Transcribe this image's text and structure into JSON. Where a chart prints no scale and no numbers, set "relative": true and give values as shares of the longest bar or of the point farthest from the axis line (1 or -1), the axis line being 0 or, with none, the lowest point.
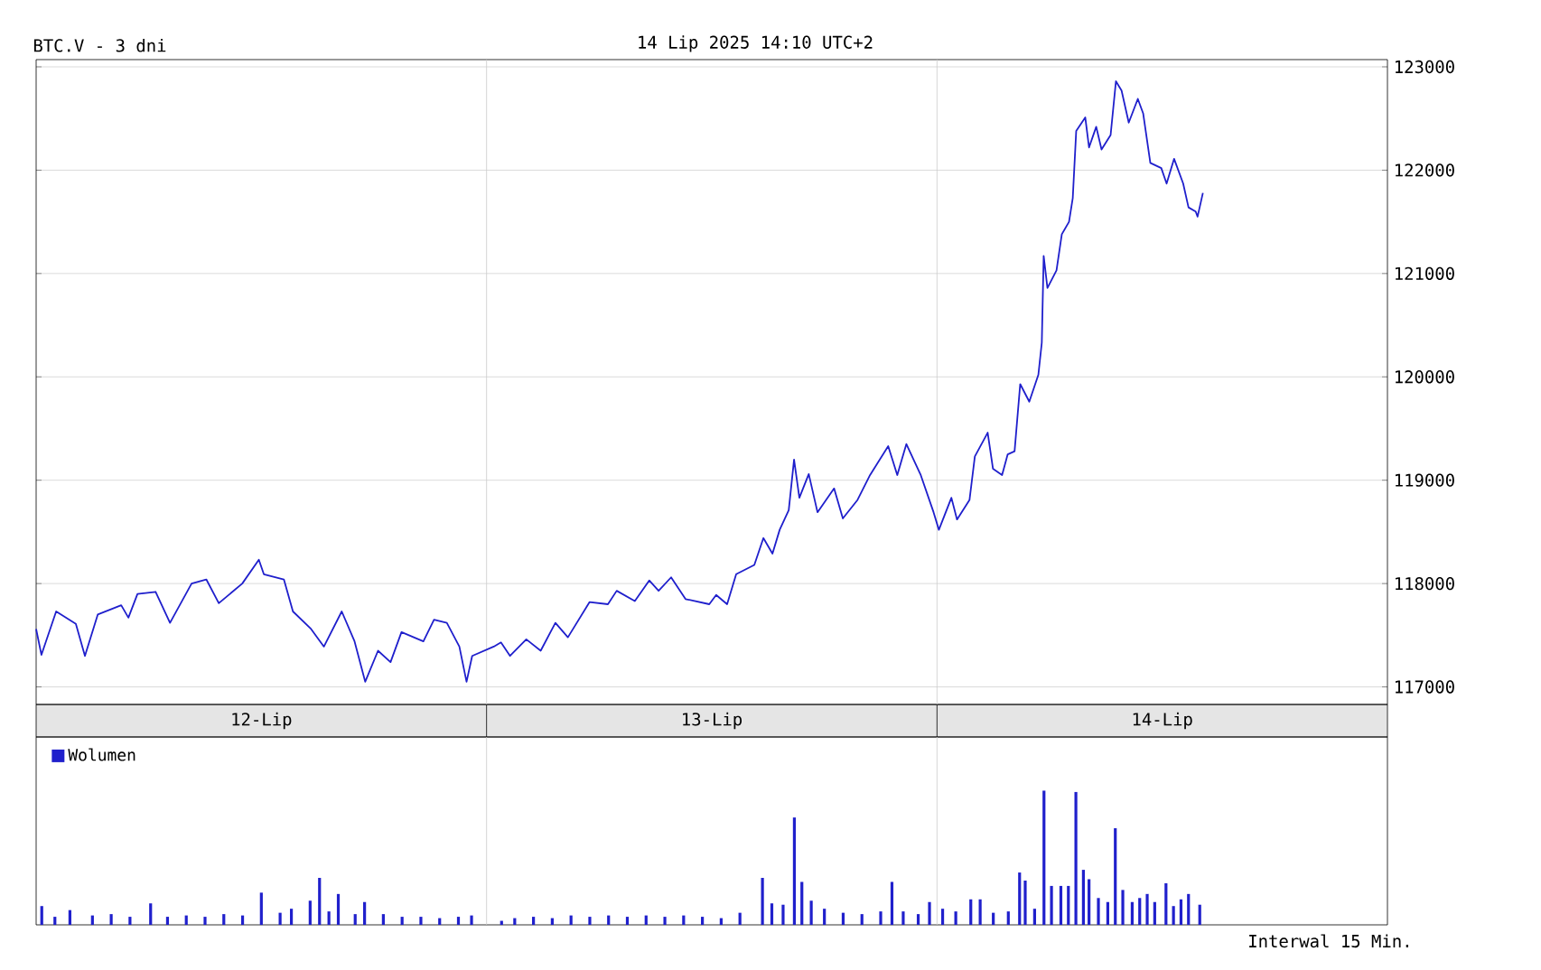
{
  "chart_data": [
    {
      "type": "line",
      "title": "BTC.V - 3 dni",
      "subtitle": "14 Lip 2025 14:10 UTC+2",
      "xlim": [
        "2025-07-12T00:00",
        "2025-07-15T00:00"
      ],
      "ylim": [
        116830,
        123070
      ],
      "tick_labels": "y",
      "yticks": [
        117000,
        118000,
        119000,
        120000,
        121000,
        122000,
        123000
      ],
      "grid": "y",
      "marker": "none",
      "line_style": "solid",
      "ref_lines": [
        {
          "axis": "x",
          "value": "2025-07-13T00:00",
          "color": "#cccccc"
        },
        {
          "axis": "x",
          "value": "2025-07-14T00:00",
          "color": "#cccccc"
        }
      ],
      "series": [
        {
          "color": "#1f1fcc",
          "x": [
            "2025-07-12T00:00",
            "2025-07-12T00:17",
            "2025-07-12T01:04",
            "2025-07-12T02:07",
            "2025-07-12T02:36",
            "2025-07-12T03:17",
            "2025-07-12T04:32",
            "2025-07-12T04:55",
            "2025-07-12T05:24",
            "2025-07-12T06:22",
            "2025-07-12T07:08",
            "2025-07-12T08:17",
            "2025-07-12T09:04",
            "2025-07-12T09:44",
            "2025-07-12T10:59",
            "2025-07-12T11:52",
            "2025-07-12T12:08",
            "2025-07-12T13:12",
            "2025-07-12T13:41",
            "2025-07-12T14:39",
            "2025-07-12T15:20",
            "2025-07-12T16:17",
            "2025-07-12T16:58",
            "2025-07-12T17:32",
            "2025-07-12T18:13",
            "2025-07-12T18:53",
            "2025-07-12T19:28",
            "2025-07-12T20:38",
            "2025-07-12T21:12",
            "2025-07-12T21:53",
            "2025-07-12T22:33",
            "2025-07-12T22:56",
            "2025-07-12T23:14",
            "2025-07-13T00:23",
            "2025-07-13T00:46",
            "2025-07-13T01:15",
            "2025-07-13T02:07",
            "2025-07-13T02:53",
            "2025-07-13T03:40",
            "2025-07-13T04:20",
            "2025-07-13T05:29",
            "2025-07-13T06:28",
            "2025-07-13T06:56",
            "2025-07-13T07:54",
            "2025-07-13T08:40",
            "2025-07-13T09:10",
            "2025-07-13T09:50",
            "2025-07-13T10:36",
            "2025-07-13T11:52",
            "2025-07-13T12:14",
            "2025-07-13T12:49",
            "2025-07-13T13:18",
            "2025-07-13T14:16",
            "2025-07-13T14:45",
            "2025-07-13T15:14",
            "2025-07-13T15:37",
            "2025-07-13T16:06",
            "2025-07-13T16:23",
            "2025-07-13T16:40",
            "2025-07-13T17:10",
            "2025-07-13T17:38",
            "2025-07-13T18:31",
            "2025-07-13T18:59",
            "2025-07-13T19:46",
            "2025-07-13T20:26",
            "2025-07-13T21:24",
            "2025-07-13T21:53",
            "2025-07-13T22:22",
            "2025-07-13T23:08",
            "2025-07-13T23:49",
            "2025-07-14T00:06",
            "2025-07-14T00:46",
            "2025-07-14T01:04",
            "2025-07-14T01:44",
            "2025-07-14T02:01",
            "2025-07-14T02:42",
            "2025-07-14T02:59",
            "2025-07-14T03:28",
            "2025-07-14T03:46",
            "2025-07-14T04:08",
            "2025-07-14T04:26",
            "2025-07-14T04:55",
            "2025-07-14T05:24",
            "2025-07-14T05:35",
            "2025-07-14T05:41",
            "2025-07-14T05:53",
            "2025-07-14T06:22",
            "2025-07-14T06:39",
            "2025-07-14T07:02",
            "2025-07-14T07:14",
            "2025-07-14T07:25",
            "2025-07-14T07:54",
            "2025-07-14T08:06",
            "2025-07-14T08:29",
            "2025-07-14T08:46",
            "2025-07-14T09:15",
            "2025-07-14T09:32",
            "2025-07-14T09:50",
            "2025-07-14T10:13",
            "2025-07-14T10:42",
            "2025-07-14T10:59",
            "2025-07-14T11:22",
            "2025-07-14T11:57",
            "2025-07-14T12:14",
            "2025-07-14T12:38",
            "2025-07-14T13:07",
            "2025-07-14T13:24",
            "2025-07-14T13:47",
            "2025-07-14T13:53",
            "2025-07-14T14:10"
          ],
          "values": [
            117560,
            117310,
            117730,
            117610,
            117300,
            117700,
            117790,
            117670,
            117900,
            117920,
            117620,
            118000,
            118040,
            117810,
            118000,
            118230,
            118090,
            118040,
            117730,
            117560,
            117390,
            117730,
            117440,
            117050,
            117350,
            117240,
            117530,
            117440,
            117650,
            117620,
            117390,
            117050,
            117300,
            117390,
            117430,
            117300,
            117460,
            117350,
            117620,
            117480,
            117820,
            117800,
            117930,
            117830,
            118030,
            117930,
            118060,
            117850,
            117800,
            117890,
            117800,
            118090,
            118180,
            118440,
            118290,
            118520,
            118710,
            119200,
            118830,
            119060,
            118690,
            118920,
            118630,
            118810,
            119050,
            119330,
            119050,
            119350,
            119050,
            118690,
            118520,
            118830,
            118620,
            118810,
            119230,
            119460,
            119110,
            119050,
            119250,
            119280,
            119930,
            119760,
            120020,
            120330,
            121170,
            120860,
            121030,
            121380,
            121500,
            121730,
            122380,
            122510,
            122220,
            122420,
            122200,
            122340,
            122860,
            122770,
            122460,
            122690,
            122550,
            122070,
            122020,
            121870,
            122110,
            121870,
            121640,
            121600,
            121550,
            121780
          ]
        }
      ]
    },
    {
      "type": "bar",
      "relative": true,
      "xlim": [
        "2025-07-12T00:00",
        "2025-07-15T00:00"
      ],
      "tick_labels": "x",
      "legend": "top left",
      "annotations": [
        "Interwal 15 Min."
      ],
      "xticks": [
        {
          "value": "2025-07-12T12:00",
          "label": "12-Lip"
        },
        {
          "value": "2025-07-13T12:00",
          "label": "13-Lip"
        },
        {
          "value": "2025-07-14T12:00",
          "label": "14-Lip"
        }
      ],
      "ref_lines": [
        {
          "axis": "x",
          "value": "2025-07-13T00:00",
          "color": "#cccccc"
        },
        {
          "axis": "x",
          "value": "2025-07-14T00:00",
          "color": "#cccccc"
        }
      ],
      "series": [
        {
          "name": "Wolumen",
          "color": "#2020cc",
          "x": [
            "2025-07-12T00:18",
            "2025-07-12T01:00",
            "2025-07-12T01:48",
            "2025-07-12T03:00",
            "2025-07-12T04:00",
            "2025-07-12T05:00",
            "2025-07-12T06:06",
            "2025-07-12T07:00",
            "2025-07-12T08:00",
            "2025-07-12T09:00",
            "2025-07-12T10:00",
            "2025-07-12T11:00",
            "2025-07-12T12:00",
            "2025-07-12T13:00",
            "2025-07-12T13:36",
            "2025-07-12T14:36",
            "2025-07-12T15:06",
            "2025-07-12T15:36",
            "2025-07-12T16:06",
            "2025-07-12T17:00",
            "2025-07-12T17:30",
            "2025-07-12T18:30",
            "2025-07-12T19:30",
            "2025-07-12T20:30",
            "2025-07-12T21:30",
            "2025-07-12T22:30",
            "2025-07-12T23:12",
            "2025-07-13T00:48",
            "2025-07-13T01:30",
            "2025-07-13T02:30",
            "2025-07-13T03:30",
            "2025-07-13T04:30",
            "2025-07-13T05:30",
            "2025-07-13T06:30",
            "2025-07-13T07:30",
            "2025-07-13T08:30",
            "2025-07-13T09:30",
            "2025-07-13T10:30",
            "2025-07-13T11:30",
            "2025-07-13T12:30",
            "2025-07-13T13:30",
            "2025-07-13T14:42",
            "2025-07-13T15:12",
            "2025-07-13T15:48",
            "2025-07-13T16:24",
            "2025-07-13T16:48",
            "2025-07-13T17:18",
            "2025-07-13T18:00",
            "2025-07-13T19:00",
            "2025-07-13T20:00",
            "2025-07-13T21:00",
            "2025-07-13T21:36",
            "2025-07-13T22:12",
            "2025-07-13T23:00",
            "2025-07-13T23:36",
            "2025-07-14T00:18",
            "2025-07-14T01:00",
            "2025-07-14T01:48",
            "2025-07-14T02:18",
            "2025-07-14T03:00",
            "2025-07-14T03:48",
            "2025-07-14T04:24",
            "2025-07-14T04:42",
            "2025-07-14T05:12",
            "2025-07-14T05:42",
            "2025-07-14T06:06",
            "2025-07-14T06:36",
            "2025-07-14T07:00",
            "2025-07-14T07:24",
            "2025-07-14T07:48",
            "2025-07-14T08:06",
            "2025-07-14T08:36",
            "2025-07-14T09:06",
            "2025-07-14T09:30",
            "2025-07-14T09:54",
            "2025-07-14T10:24",
            "2025-07-14T10:48",
            "2025-07-14T11:12",
            "2025-07-14T11:36",
            "2025-07-14T12:12",
            "2025-07-14T12:36",
            "2025-07-14T13:00",
            "2025-07-14T13:24",
            "2025-07-14T14:00"
          ],
          "values": [
            0.14,
            0.06,
            0.11,
            0.07,
            0.08,
            0.06,
            0.16,
            0.06,
            0.07,
            0.06,
            0.08,
            0.07,
            0.24,
            0.09,
            0.12,
            0.18,
            0.35,
            0.1,
            0.23,
            0.08,
            0.17,
            0.08,
            0.06,
            0.06,
            0.05,
            0.06,
            0.07,
            0.03,
            0.05,
            0.06,
            0.05,
            0.07,
            0.06,
            0.07,
            0.06,
            0.07,
            0.06,
            0.07,
            0.06,
            0.05,
            0.09,
            0.35,
            0.16,
            0.15,
            0.8,
            0.32,
            0.18,
            0.12,
            0.09,
            0.08,
            0.1,
            0.32,
            0.1,
            0.08,
            0.17,
            0.12,
            0.1,
            0.19,
            0.19,
            0.09,
            0.1,
            0.39,
            0.33,
            0.12,
            1,
            0.29,
            0.29,
            0.29,
            0.99,
            0.41,
            0.34,
            0.2,
            0.17,
            0.72,
            0.26,
            0.17,
            0.2,
            0.23,
            0.17,
            0.31,
            0.14,
            0.19,
            0.23,
            0.15
          ]
        }
      ]
    }
  ]
}
